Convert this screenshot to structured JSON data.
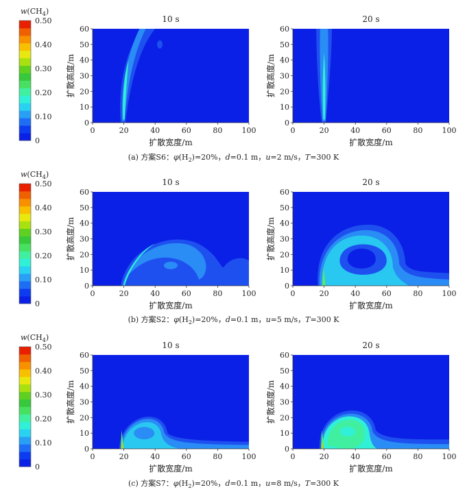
{
  "colorbar": {
    "label_var": "w",
    "label_species": "(CH",
    "label_sub": "4",
    "label_close": ")",
    "ticks": [
      "0.50",
      "0.40",
      "0.30",
      "0.20",
      "0.10",
      "0"
    ],
    "colors": [
      "#0a20e6",
      "#0d3cf0",
      "#1e6ef5",
      "#28a0f5",
      "#28d2f0",
      "#30f0d8",
      "#40f0a0",
      "#48e060",
      "#38c83c",
      "#60d020",
      "#a8e010",
      "#e8e810",
      "#f8c000",
      "#f89000",
      "#f06000",
      "#e82000"
    ]
  },
  "palette": {
    "background": "#0a20e6",
    "level1": "#1e50f0",
    "level2": "#2a8cf5",
    "level3": "#28c8f0",
    "level4": "#30f0d8",
    "level5": "#40f0a0",
    "level6": "#60e860",
    "core": "#f0c000"
  },
  "chart_data": [
    {
      "type": "heatmap",
      "title": "10 s",
      "xlabel": "扩散宽度/m",
      "ylabel": "扩散高度/m",
      "xlim": [
        0,
        100
      ],
      "ylim": [
        0,
        60
      ],
      "xticks": [
        "0",
        "20",
        "40",
        "60",
        "80",
        "100"
      ],
      "yticks": [
        "0",
        "10",
        "20",
        "30",
        "40",
        "50",
        "60"
      ],
      "row": "a",
      "shape": "plume_curved"
    },
    {
      "type": "heatmap",
      "title": "20 s",
      "xlabel": "扩散宽度/m",
      "ylabel": "扩散高度/m",
      "xlim": [
        0,
        100
      ],
      "ylim": [
        0,
        60
      ],
      "xticks": [
        "0",
        "20",
        "40",
        "60",
        "80",
        "100"
      ],
      "yticks": [
        "0",
        "10",
        "20",
        "30",
        "40",
        "50",
        "60"
      ],
      "row": "a",
      "shape": "plume_vertical"
    },
    {
      "type": "heatmap",
      "title": "10 s",
      "xlabel": "扩散宽度/m",
      "ylabel": "扩散高度/m",
      "xlim": [
        0,
        100
      ],
      "ylim": [
        0,
        60
      ],
      "xticks": [
        "0",
        "20",
        "40",
        "60",
        "80",
        "100"
      ],
      "yticks": [
        "0",
        "10",
        "20",
        "30",
        "40",
        "50",
        "60"
      ],
      "row": "b",
      "shape": "dome_early"
    },
    {
      "type": "heatmap",
      "title": "20 s",
      "xlabel": "扩散宽度/m",
      "ylabel": "扩散高度/m",
      "xlim": [
        0,
        100
      ],
      "ylim": [
        0,
        60
      ],
      "xticks": [
        "0",
        "20",
        "40",
        "60",
        "80",
        "100"
      ],
      "yticks": [
        "0",
        "10",
        "20",
        "30",
        "40",
        "50",
        "60"
      ],
      "row": "b",
      "shape": "dome_late"
    },
    {
      "type": "heatmap",
      "title": "10 s",
      "xlabel": "扩散宽度/m",
      "ylabel": "扩散高度/m",
      "xlim": [
        0,
        100
      ],
      "ylim": [
        0,
        60
      ],
      "xticks": [
        "0",
        "20",
        "40",
        "60",
        "80",
        "100"
      ],
      "yticks": [
        "0",
        "10",
        "20",
        "30",
        "40",
        "50",
        "60"
      ],
      "row": "c",
      "shape": "ground_small"
    },
    {
      "type": "heatmap",
      "title": "20 s",
      "xlabel": "扩散宽度/m",
      "ylabel": "扩散高度/m",
      "xlim": [
        0,
        100
      ],
      "ylim": [
        0,
        60
      ],
      "xticks": [
        "0",
        "20",
        "40",
        "60",
        "80",
        "100"
      ],
      "yticks": [
        "0",
        "10",
        "20",
        "30",
        "40",
        "50",
        "60"
      ],
      "row": "c",
      "shape": "ground_large"
    }
  ],
  "captions": {
    "a": {
      "prefix": "(a) 方案S6：",
      "phi": "φ",
      "rest": "(H",
      "sub": "2",
      "tail": ")=20%，",
      "d": "d",
      "d_val": "=0.1 m，",
      "u": "u",
      "u_val": "=2 m/s，",
      "T": "T",
      "T_val": "=300 K"
    },
    "b": {
      "prefix": "(b) 方案S2：",
      "phi": "φ",
      "rest": "(H",
      "sub": "2",
      "tail": ")=20%，",
      "d": "d",
      "d_val": "=0.1 m，",
      "u": "u",
      "u_val": "=5 m/s，",
      "T": "T",
      "T_val": "=300 K"
    },
    "c": {
      "prefix": "(c) 方案S7：",
      "phi": "φ",
      "rest": "(H",
      "sub": "2",
      "tail": ")=20%，",
      "d": "d",
      "d_val": "=0.1 m，",
      "u": "u",
      "u_val": "=8 m/s，",
      "T": "T",
      "T_val": "=300 K"
    }
  }
}
